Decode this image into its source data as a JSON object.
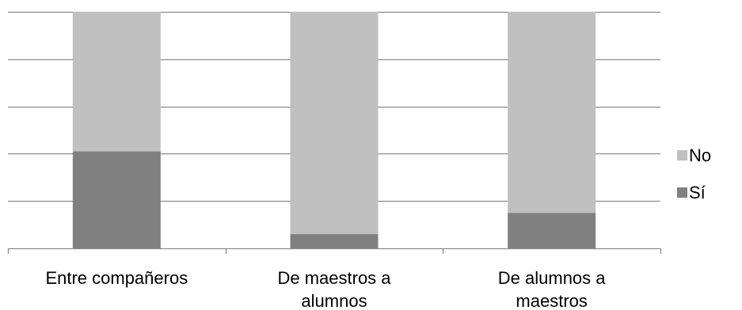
{
  "colors": {
    "no": "#c0c0c0",
    "si": "#808080",
    "grid": "#8c8c8c",
    "axis": "#8c8c8c"
  },
  "chart_data": {
    "type": "bar",
    "stacked": true,
    "percent_stacked": true,
    "title": "",
    "xlabel": "",
    "ylabel": "",
    "ylim": [
      0,
      100
    ],
    "grid": true,
    "y_tick_labels_shown": false,
    "legend_position": "right",
    "categories": [
      [
        "Entre compañeros"
      ],
      [
        "De maestros a",
        "alumnos"
      ],
      [
        "De alumnos a",
        "maestros"
      ]
    ],
    "series": [
      {
        "name": "Sí",
        "values": [
          41,
          6,
          15
        ],
        "color": "#808080"
      },
      {
        "name": "No",
        "values": [
          59,
          94,
          85
        ],
        "color": "#c0c0c0"
      }
    ],
    "legend_order": [
      "No",
      "Sí"
    ]
  }
}
